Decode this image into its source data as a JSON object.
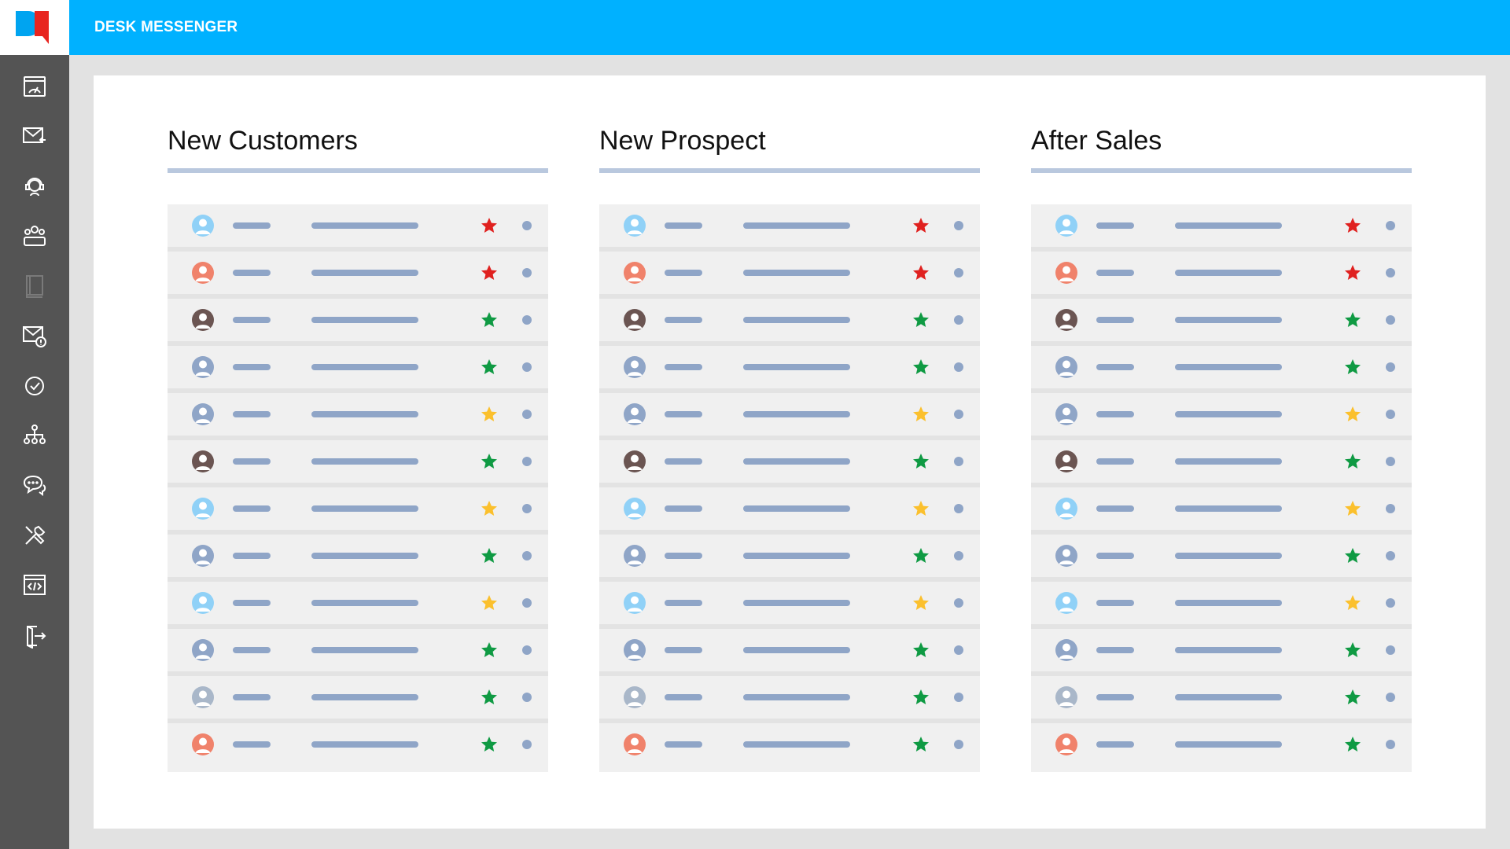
{
  "app": {
    "title": "DESK MESSENGER",
    "brand_colors": {
      "header": "#00b1ff",
      "sidebar": "#545454",
      "logo_blue": "#00a4f0",
      "logo_red": "#e8251f"
    }
  },
  "sidebar": {
    "items": [
      {
        "icon": "dashboard-icon"
      },
      {
        "icon": "inbox-mail-icon"
      },
      {
        "icon": "support-agent-icon"
      },
      {
        "icon": "team-icon"
      },
      {
        "icon": "book-icon",
        "disabled": true
      },
      {
        "icon": "mail-alert-icon"
      },
      {
        "icon": "check-circle-icon"
      },
      {
        "icon": "org-chart-icon"
      },
      {
        "icon": "chat-bubbles-icon"
      },
      {
        "icon": "tools-icon"
      },
      {
        "icon": "code-window-icon"
      },
      {
        "icon": "logout-icon"
      }
    ]
  },
  "status_colors": {
    "red": "#e0211f",
    "green": "#0f9a43",
    "yellow": "#fbc02d"
  },
  "avatar_colors": {
    "light-blue": "#90d1f7",
    "salmon": "#f0826b",
    "dark-brown": "#6b5552",
    "slate": "#8fa5c7",
    "gray-blue": "#a9b7c9"
  },
  "columns": [
    {
      "title": "New Customers",
      "rows": [
        {
          "avatar": "light-blue",
          "star": "red"
        },
        {
          "avatar": "salmon",
          "star": "red"
        },
        {
          "avatar": "dark-brown",
          "star": "green"
        },
        {
          "avatar": "slate",
          "star": "green"
        },
        {
          "avatar": "slate",
          "star": "yellow"
        },
        {
          "avatar": "dark-brown",
          "star": "green"
        },
        {
          "avatar": "light-blue",
          "star": "yellow"
        },
        {
          "avatar": "slate",
          "star": "green"
        },
        {
          "avatar": "light-blue",
          "star": "yellow"
        },
        {
          "avatar": "slate",
          "star": "green"
        },
        {
          "avatar": "gray-blue",
          "star": "green"
        },
        {
          "avatar": "salmon",
          "star": "green"
        }
      ]
    },
    {
      "title": "New Prospect",
      "rows": [
        {
          "avatar": "light-blue",
          "star": "red"
        },
        {
          "avatar": "salmon",
          "star": "red"
        },
        {
          "avatar": "dark-brown",
          "star": "green"
        },
        {
          "avatar": "slate",
          "star": "green"
        },
        {
          "avatar": "slate",
          "star": "yellow"
        },
        {
          "avatar": "dark-brown",
          "star": "green"
        },
        {
          "avatar": "light-blue",
          "star": "yellow"
        },
        {
          "avatar": "slate",
          "star": "green"
        },
        {
          "avatar": "light-blue",
          "star": "yellow"
        },
        {
          "avatar": "slate",
          "star": "green"
        },
        {
          "avatar": "gray-blue",
          "star": "green"
        },
        {
          "avatar": "salmon",
          "star": "green"
        }
      ]
    },
    {
      "title": "After Sales",
      "rows": [
        {
          "avatar": "light-blue",
          "star": "red"
        },
        {
          "avatar": "salmon",
          "star": "red"
        },
        {
          "avatar": "dark-brown",
          "star": "green"
        },
        {
          "avatar": "slate",
          "star": "green"
        },
        {
          "avatar": "slate",
          "star": "yellow"
        },
        {
          "avatar": "dark-brown",
          "star": "green"
        },
        {
          "avatar": "light-blue",
          "star": "yellow"
        },
        {
          "avatar": "slate",
          "star": "green"
        },
        {
          "avatar": "light-blue",
          "star": "yellow"
        },
        {
          "avatar": "slate",
          "star": "green"
        },
        {
          "avatar": "gray-blue",
          "star": "green"
        },
        {
          "avatar": "salmon",
          "star": "green"
        }
      ]
    }
  ]
}
